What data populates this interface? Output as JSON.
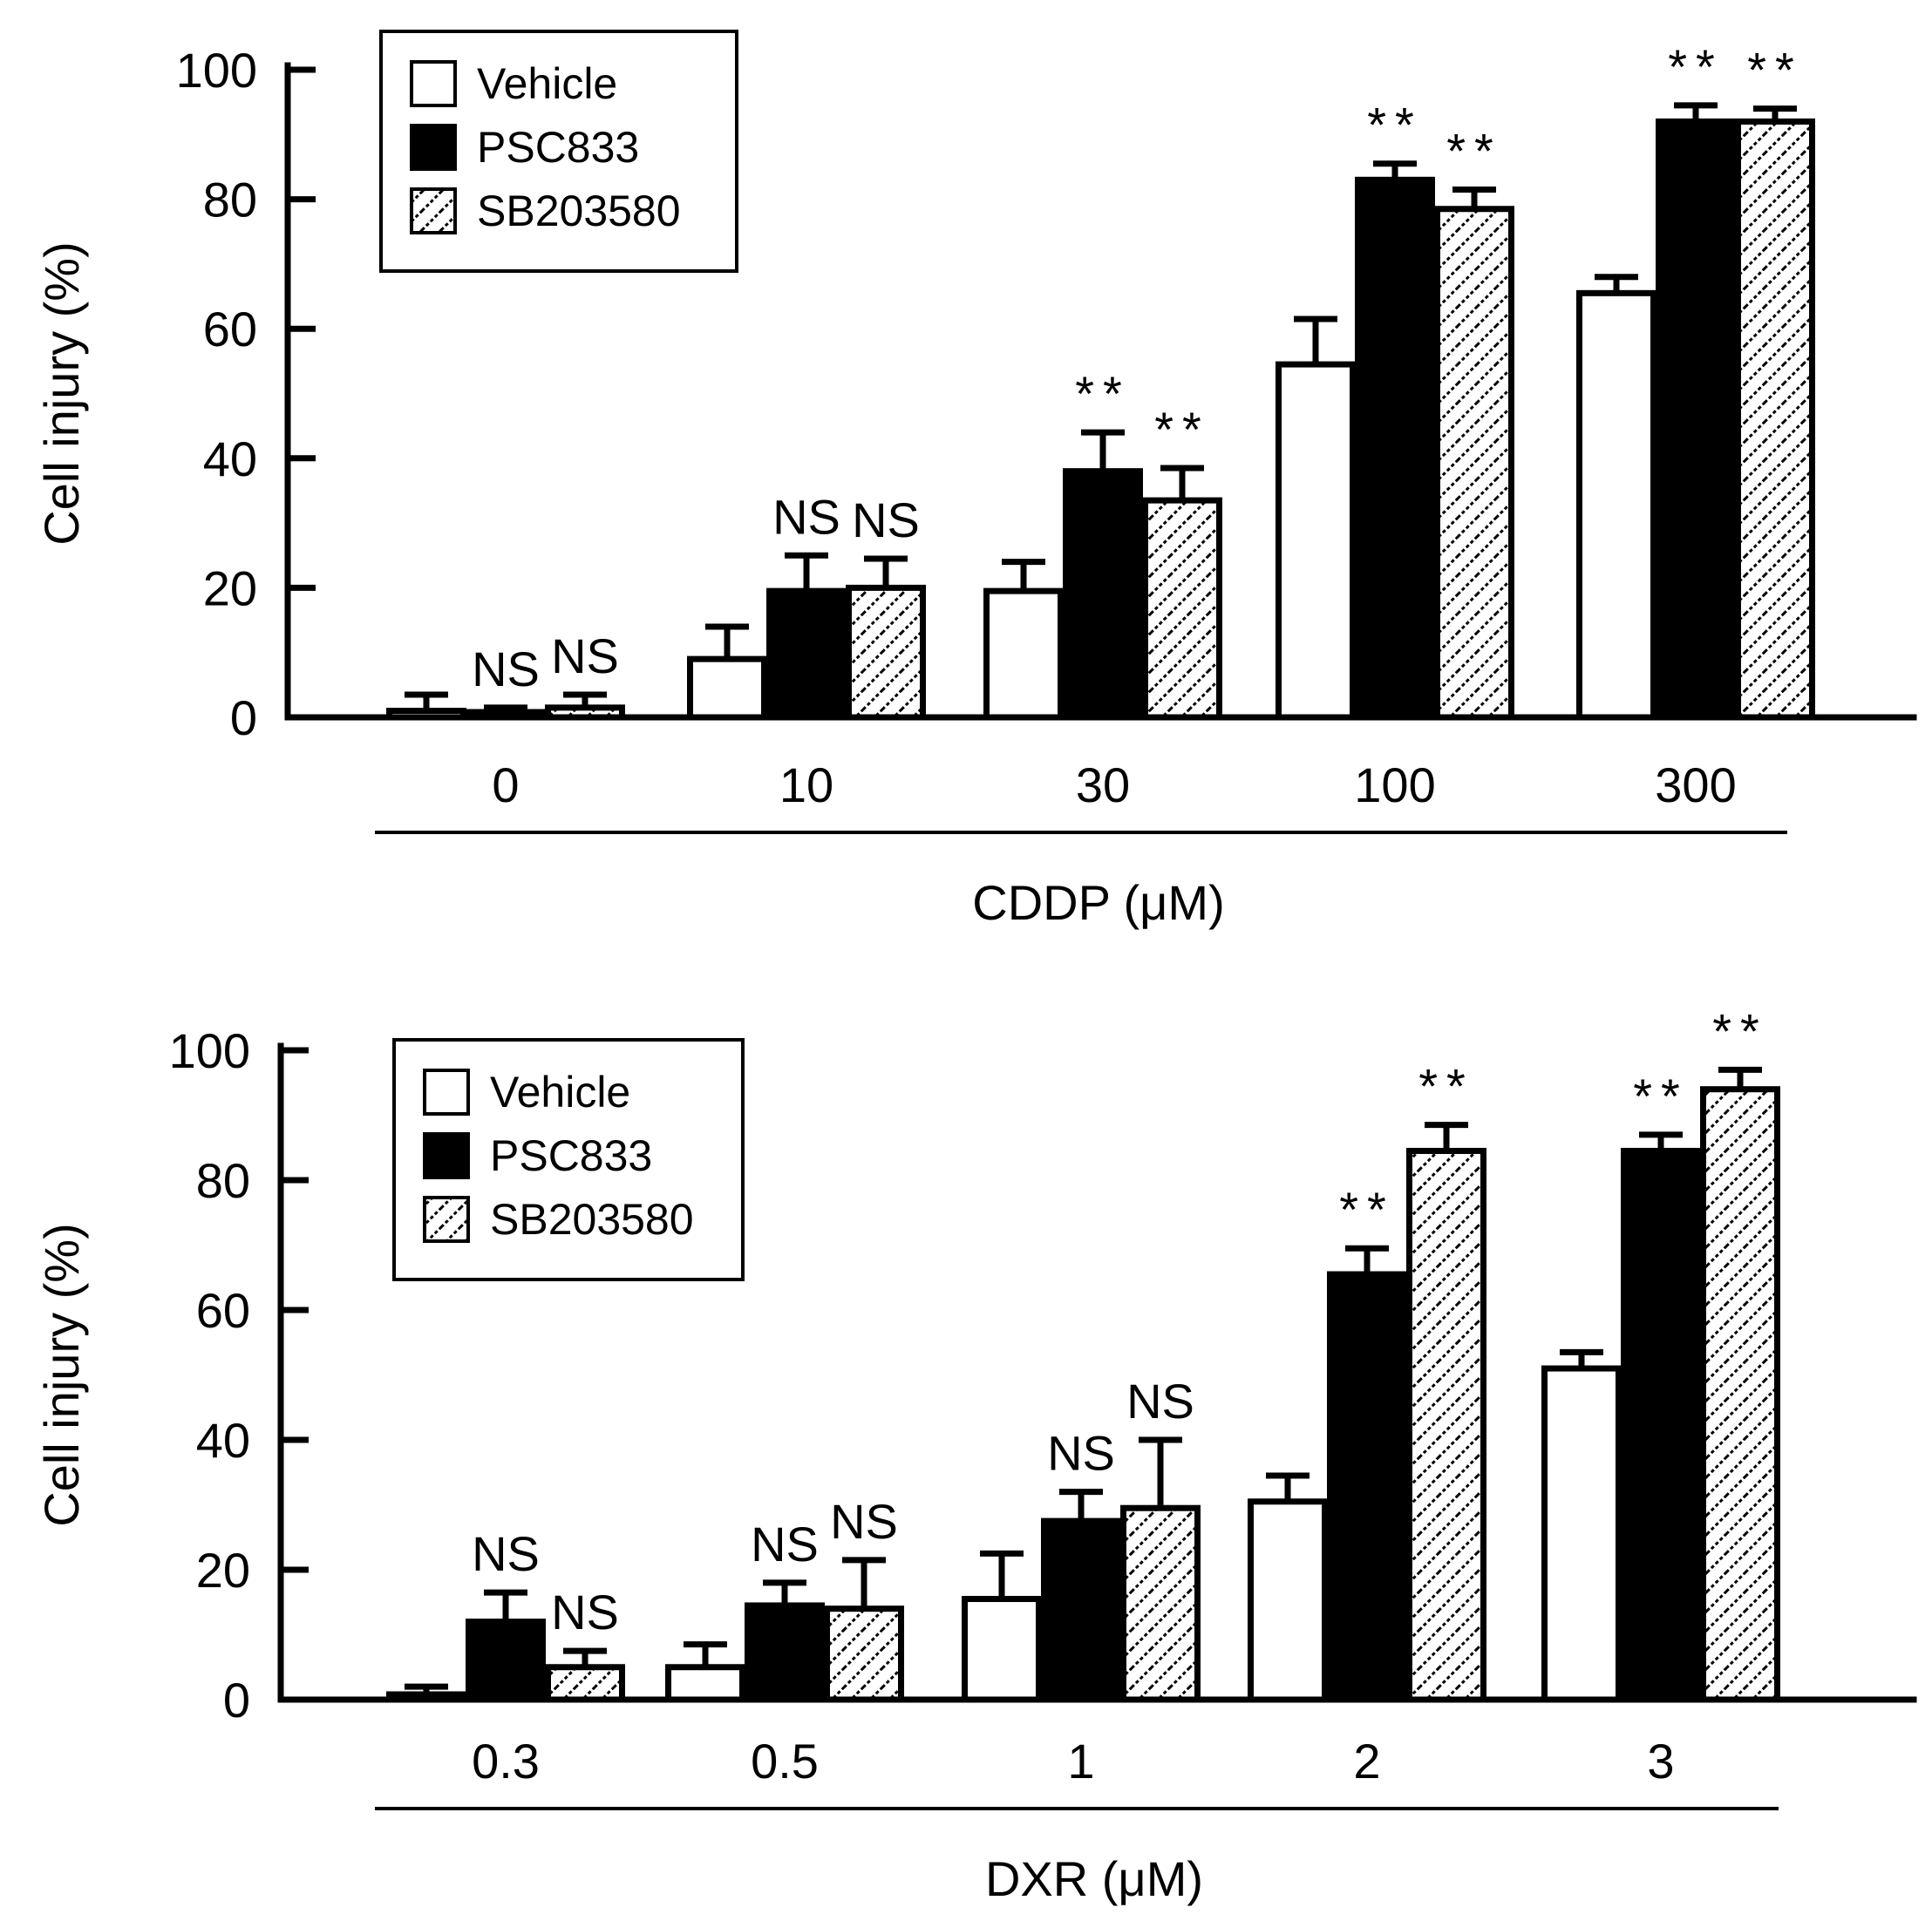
{
  "legend": {
    "entries": [
      {
        "label": "Vehicle",
        "fill": "white"
      },
      {
        "label": "PSC833",
        "fill": "black"
      },
      {
        "label": "SB203580",
        "fill": "hatch"
      }
    ]
  },
  "colors": {
    "axis": "#000000",
    "bar_black": "#000000",
    "bar_white": "#ffffff"
  },
  "chart_data": [
    {
      "type": "bar",
      "title": "",
      "ylabel": "Cell injury  (%)",
      "xlabel": "CDDP  (μM)",
      "ylim": [
        0,
        100
      ],
      "yticks": [
        "0",
        "20",
        "40",
        "60",
        "80",
        "100"
      ],
      "categories": [
        "0",
        "10",
        "30",
        "100",
        "300"
      ],
      "series": [
        {
          "name": "Vehicle",
          "values": [
            1,
            9,
            19.5,
            54.5,
            65.5
          ],
          "errors": [
            2.5,
            5,
            4.5,
            7,
            2.5
          ],
          "labels": [
            "",
            "",
            "",
            "",
            ""
          ]
        },
        {
          "name": "PSC833",
          "values": [
            0.5,
            19.5,
            38,
            83,
            92
          ],
          "errors": [
            1,
            5.5,
            6,
            2.5,
            2.5
          ],
          "labels": [
            "NS",
            "NS",
            "**",
            "**",
            "**"
          ]
        },
        {
          "name": "SB203580",
          "values": [
            1.5,
            20,
            33.5,
            78.5,
            92
          ],
          "errors": [
            2,
            4.5,
            5,
            3,
            2
          ],
          "labels": [
            "NS",
            "NS",
            "**",
            "**",
            "**"
          ]
        }
      ]
    },
    {
      "type": "bar",
      "title": "",
      "ylabel": "Cell injury  (%)",
      "xlabel": "DXR  (μM)",
      "ylim": [
        0,
        100
      ],
      "yticks": [
        "0",
        "20",
        "40",
        "60",
        "80",
        "100"
      ],
      "categories": [
        "0.3",
        "0.5",
        "1",
        "2",
        "3"
      ],
      "series": [
        {
          "name": "Vehicle",
          "values": [
            0.5,
            5,
            15.5,
            30.5,
            51
          ],
          "errors": [
            1.5,
            3.5,
            7,
            4,
            2.5
          ],
          "labels": [
            "",
            "",
            "",
            "",
            ""
          ]
        },
        {
          "name": "PSC833",
          "values": [
            12,
            14.5,
            27.5,
            65.5,
            84.5
          ],
          "errors": [
            4.5,
            3.5,
            4.5,
            4,
            2.5
          ],
          "labels": [
            "NS",
            "NS",
            "NS",
            "**",
            "**"
          ]
        },
        {
          "name": "SB203580",
          "values": [
            5,
            14,
            29.5,
            84.5,
            94
          ],
          "errors": [
            2.5,
            7.5,
            10.5,
            4,
            3
          ],
          "labels": [
            "NS",
            "NS",
            "NS",
            "**",
            "**"
          ]
        }
      ]
    }
  ]
}
